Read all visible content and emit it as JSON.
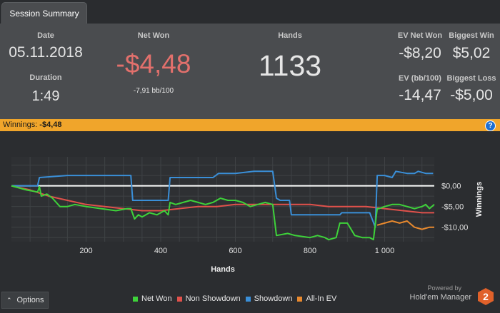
{
  "tab": {
    "label": "Session Summary"
  },
  "summary": {
    "date_label": "Date",
    "date_value": "05.11.2018",
    "duration_label": "Duration",
    "duration_value": "1:49",
    "net_won_label": "Net Won",
    "net_won_value": "-$4,48",
    "net_won_bb": "-7,91 bb/100",
    "hands_label": "Hands",
    "hands_value": "1133",
    "ev_net_won_label": "EV Net Won",
    "ev_net_won_value": "-$8,20",
    "biggest_win_label": "Biggest Win",
    "biggest_win_value": "$5,02",
    "ev_bb_label": "EV (bb/100)",
    "ev_bb_value": "-14,47",
    "biggest_loss_label": "Biggest Loss",
    "biggest_loss_value": "-$5,00"
  },
  "banner": {
    "label": "Winnings:",
    "value": "-$4,48",
    "help": "?"
  },
  "options": {
    "label": "Options"
  },
  "brand": {
    "powered_by": "Powered by",
    "name": "Hold'em Manager",
    "logo_text": "2"
  },
  "colors": {
    "net_won": "#3ed23a",
    "non_showdown": "#e0514b",
    "showdown": "#3a8fd8",
    "all_in_ev": "#e8892e",
    "banner": "#f0a52b",
    "loss_red": "#e2706c"
  },
  "chart_data": {
    "type": "line",
    "xlabel": "Hands",
    "ylabel": "Winnings",
    "xlim": [
      0,
      1133
    ],
    "ylim": [
      -13.5,
      7
    ],
    "x_ticks": [
      200,
      400,
      600,
      800,
      1000
    ],
    "x_tick_labels": [
      "200",
      "400",
      "600",
      "800",
      "1 000"
    ],
    "y_ticks": [
      0,
      -5,
      -10
    ],
    "y_tick_labels": [
      "$0,00",
      "-$5,00",
      "-$10,00"
    ],
    "zero_line": true,
    "grid": true,
    "legend_position": "bottom",
    "series": [
      {
        "name": "Net Won",
        "color": "#3ed23a",
        "x": [
          0,
          40,
          70,
          75,
          80,
          95,
          110,
          130,
          150,
          170,
          200,
          240,
          280,
          310,
          320,
          330,
          340,
          350,
          370,
          390,
          400,
          410,
          420,
          425,
          440,
          460,
          480,
          500,
          520,
          540,
          560,
          580,
          600,
          620,
          640,
          660,
          680,
          700,
          710,
          740,
          760,
          800,
          820,
          840,
          850,
          870,
          880,
          900,
          920,
          940,
          960,
          970,
          980,
          985,
          1000,
          1020,
          1040,
          1060,
          1080,
          1100,
          1110,
          1120,
          1133
        ],
        "y": [
          0,
          -1,
          -1.5,
          -0.2,
          -2.5,
          -2,
          -3,
          -5,
          -5,
          -4.5,
          -5,
          -5.5,
          -6,
          -5.5,
          -5.5,
          -8,
          -7,
          -7.5,
          -6.5,
          -7,
          -6.5,
          -6,
          -7,
          -4,
          -4.5,
          -4,
          -3.5,
          -4,
          -4.5,
          -4,
          -3,
          -3.5,
          -3.5,
          -4,
          -5,
          -4.5,
          -4,
          -4.5,
          -12,
          -11.5,
          -12,
          -12.5,
          -12,
          -12.5,
          -13,
          -12.5,
          -9,
          -9,
          -12,
          -12.5,
          -12.5,
          -13,
          -5.5,
          -5.5,
          -5,
          -4.5,
          -4.5,
          -5,
          -5.5,
          -5,
          -4.5,
          -5.5,
          -4.5
        ]
      },
      {
        "name": "Non Showdown",
        "color": "#e0514b",
        "x": [
          0,
          50,
          100,
          150,
          200,
          250,
          300,
          350,
          400,
          450,
          500,
          550,
          600,
          650,
          700,
          750,
          800,
          850,
          900,
          950,
          1000,
          1050,
          1100,
          1133
        ],
        "y": [
          0,
          -1,
          -2.5,
          -3.5,
          -4.5,
          -5,
          -5.5,
          -6,
          -6,
          -5.5,
          -5,
          -5,
          -4.5,
          -4.5,
          -4.5,
          -4.5,
          -4.5,
          -5,
          -5,
          -5,
          -5.5,
          -6,
          -6.5,
          -6.5
        ]
      },
      {
        "name": "Showdown",
        "color": "#3a8fd8",
        "x": [
          0,
          70,
          75,
          150,
          300,
          320,
          325,
          420,
          425,
          540,
          555,
          600,
          650,
          670,
          700,
          710,
          720,
          745,
          750,
          880,
          885,
          960,
          975,
          980,
          1000,
          1020,
          1030,
          1060,
          1080,
          1090,
          1110,
          1130
        ],
        "y": [
          0,
          0,
          2,
          2.5,
          2.5,
          2.5,
          -3.5,
          -3.5,
          2,
          2,
          3,
          3,
          3.5,
          3.5,
          3.5,
          -3,
          -3.5,
          -3.5,
          -7,
          -7,
          -6.5,
          -6.5,
          -10,
          2.5,
          2.5,
          2,
          3.5,
          3,
          3,
          3.5,
          3,
          3
        ]
      },
      {
        "name": "All-In EV",
        "color": "#e8892e",
        "x": [
          980,
          1000,
          1020,
          1040,
          1060,
          1080,
          1100,
          1120,
          1133
        ],
        "y": [
          -9.5,
          -9,
          -8.5,
          -9,
          -8.5,
          -10,
          -10.5,
          -10,
          -10
        ]
      }
    ]
  }
}
